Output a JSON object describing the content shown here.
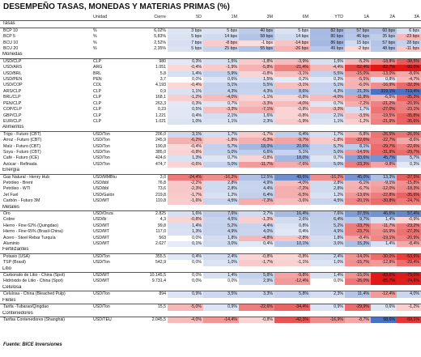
{
  "title": "DESEMPEÑO TASAS, MONEDAS Y MATERIAS PRIMAS (%)",
  "columns": [
    "",
    "Unidad",
    "Cierre",
    "5D",
    "1M",
    "3M",
    "6M",
    "YTD",
    "1A",
    "2A",
    "3A"
  ],
  "colors": {
    "pos": "#4a72c4",
    "neg": "#e01818",
    "bg": "#ffffff"
  },
  "scale_pct": 80,
  "scale_bp": 400,
  "sections": [
    {
      "name": "Tasas",
      "mode": "bp",
      "rows": [
        {
          "name": "BCP 10",
          "unit": "%",
          "close": "6,02%",
          "vals": [
            "3 bps",
            "5 bps",
            "40 bps",
            "5 bps",
            "82 bps",
            "57 bps",
            "60 bps",
            "6 bps"
          ]
        },
        {
          "name": "BCP 5",
          "unit": "%",
          "close": "5,83%",
          "vals": [
            "5 bps",
            "14 bps",
            "58 bps",
            "14 bps",
            "80 bps",
            "46 bps",
            "35 bps",
            "-23 bps"
          ]
        },
        {
          "name": "BCU 10",
          "unit": "%",
          "close": "2,52%",
          "vals": [
            "7 bps",
            "-8 bps",
            "-1 bps",
            "-14 bps",
            "86 bps",
            "15 bps",
            "57 bps",
            "28 bps"
          ]
        },
        {
          "name": "BCU 20",
          "unit": "%",
          "close": "2,35%",
          "vals": [
            "5 bps",
            "25 bps",
            "55 bps",
            "-26 bps",
            "49 bps",
            "-2 bps",
            "48 bps",
            "-11 bps"
          ]
        }
      ]
    },
    {
      "name": "Monedas",
      "mode": "pct",
      "rows": [
        {
          "name": "USD/CLP",
          "unit": "CLP",
          "close": "980",
          "vals": [
            "0,3%",
            "1,5%",
            "-1,8%",
            "-3,9%",
            "1,5%",
            "-5,2%",
            "-18,8%",
            "-38,5%"
          ]
        },
        {
          "name": "USD/ARS",
          "unit": "ARG",
          "close": "1.051",
          "vals": [
            "-0,4%",
            "-1,9%",
            "-5,8%",
            "-21,4%",
            "-4,4%",
            "-52,4%",
            "-82,7%",
            "-90,0%"
          ]
        },
        {
          "name": "USD/BRL",
          "unit": "BRL",
          "close": "5,8",
          "vals": [
            "1,4%",
            "5,9%",
            "-0,8%",
            "-3,1%",
            "5,5%",
            "-15,0%",
            "-13,0%",
            "-8,6%"
          ]
        },
        {
          "name": "USD/PEN",
          "unit": "PEN",
          "close": "3,7",
          "vals": [
            "0,0%",
            "0,6%",
            "1,5%",
            "0,2%",
            "0,3%",
            "-5,5%",
            "0,8%",
            "-4,7%"
          ]
        },
        {
          "name": "USD/COP",
          "unit": "COL",
          "close": "4.193",
          "vals": [
            "-0,4%",
            "5,1%",
            "5,5%",
            "-3,1%",
            "5,1%",
            "-6,0%",
            "-16,9%",
            "-32,3%"
          ]
        },
        {
          "name": "ARS/CLP",
          "unit": "CLP",
          "close": "0,9",
          "vals": [
            "1,1%",
            "4,3%",
            "4,3%",
            "8,6%",
            "4,3%",
            "21,3%",
            "319,1%",
            "719,4%"
          ]
        },
        {
          "name": "BRL/CLP",
          "unit": "CLP",
          "close": "168,1",
          "vals": [
            "-1,2%",
            "-4,0%",
            "-1,1%",
            "-0,8%",
            "-4,0%",
            "-11,8%",
            "-6,5%",
            "-35,3%"
          ]
        },
        {
          "name": "PEN/CLP",
          "unit": "CLP",
          "close": "263,3",
          "vals": [
            "0,3%",
            "0,7%",
            "-3,3%",
            "-4,0%",
            "0,7%",
            "-7,2%",
            "-21,2%",
            "-20,9%"
          ]
        },
        {
          "name": "COP/CLP",
          "unit": "CLP",
          "close": "0,23",
          "vals": [
            "0,5%",
            "-3,3%",
            "-7,1%",
            "-0,8%",
            "-3,3%",
            "1,7%",
            "-27,0%",
            "-23,1%"
          ]
        },
        {
          "name": "GBP/CLP",
          "unit": "CLP",
          "close": "1.221",
          "vals": [
            "0,4%",
            "2,1%",
            "1,6%",
            "-0,8%",
            "2,1%",
            "-3,5%",
            "-19,5%",
            "-35,8%"
          ]
        },
        {
          "name": "EUR/CLP",
          "unit": "CLP",
          "close": "1.021",
          "vals": [
            "1,0%",
            "1,1%",
            "2,3%",
            "-1,9%",
            "1,1%",
            "-1,2%",
            "-21,9%",
            "-35,6%"
          ]
        }
      ]
    },
    {
      "name": "Alimentos",
      "mode": "pct",
      "rows": [
        {
          "name": "Trigo - Futuro (CBT)",
          "unit": "USD/Ton",
          "close": "206,0",
          "vals": [
            "3,1%",
            "1,7%",
            "-1,7%",
            "6,4%",
            "1,7%",
            "-5,8%",
            "-26,5%",
            "-26,5%"
          ]
        },
        {
          "name": "Arroz - Futuro (CBT)",
          "unit": "USD/Ton",
          "close": "245,9",
          "vals": [
            "-6,2%",
            "-1,8%",
            "-6,3%",
            "-9,7%",
            "-1,8%",
            "-22,6%",
            "-22,7%",
            "-8,6%"
          ]
        },
        {
          "name": "Maíz - Futuro (CBT)",
          "unit": "USD/Ton",
          "close": "190,8",
          "vals": [
            "-0,4%",
            "5,7%",
            "18,0%",
            "20,6%",
            "5,7%",
            "8,1%",
            "-29,7%",
            "-22,6%"
          ]
        },
        {
          "name": "Soya - Futuro (CBT)",
          "unit": "USD/Ton",
          "close": "385,0",
          "vals": [
            "-0,8%",
            "5,0%",
            "6,6%",
            "5,1%",
            "5,0%",
            "-14,5%",
            "-31,9%",
            "-29,7%"
          ]
        },
        {
          "name": "Café - Futuro (ICE)",
          "unit": "USD/Ton",
          "close": "424,6",
          "vals": [
            "1,3%",
            "0,7%",
            "-0,8%",
            "18,0%",
            "0,7%",
            "33,6%",
            "45,7%",
            "5,7%"
          ]
        },
        {
          "name": "Azúcar - Refinada",
          "unit": "USD/Ton",
          "close": "474,7",
          "vals": [
            "-0,6%",
            "5,0%",
            "-11,7%",
            "-7,6%",
            "5,0%",
            "-23,3%",
            "-9,8%",
            "0,3%"
          ]
        }
      ]
    },
    {
      "name": "Energía",
      "mode": "pct",
      "rows": [
        {
          "name": "Gas Natural - Henry Hub",
          "unit": "USD/MMBtu",
          "close": "3,0",
          "vals": [
            "-24,4%",
            "-16,2%",
            "12,5%",
            "49,6%",
            "-16,2%",
            "45,0%",
            "13,3%",
            "-37,5%"
          ]
        },
        {
          "name": "Petróleo - Brent",
          "unit": "USD/bbl",
          "close": "76,8",
          "vals": [
            "-2,2%",
            "2,8%",
            "4,9%",
            "-4,0%",
            "2,8%",
            "-6,1%",
            "-9,1%",
            "-15,8%"
          ]
        },
        {
          "name": "Petróleo - WTI",
          "unit": "USD/bbl",
          "close": "73,6",
          "vals": [
            "-2,3%",
            "2,8%",
            "4,4%",
            "-7,2%",
            "2,8%",
            "-6,7%",
            "-12,0%",
            "-18,3%"
          ]
        },
        {
          "name": "Jet Fuel",
          "unit": "USD/Galón",
          "close": "219,8",
          "vals": [
            "-1,7%",
            "1,2%",
            "6,4%",
            "-6,5%",
            "1,2%",
            "-13,6%",
            "-22,8%",
            "-35,6%"
          ]
        },
        {
          "name": "Carbón - Futuro 3M",
          "unit": "USD/MT",
          "close": "110,8",
          "vals": [
            "-1,6%",
            "4,5%",
            "-7,3%",
            "-3,6%",
            "4,5%",
            "-20,1%",
            "-30,8%",
            "-24,7%"
          ]
        }
      ]
    },
    {
      "name": "Metales",
      "mode": "pct",
      "rows": [
        {
          "name": "Oro",
          "unit": "USD/Onza",
          "close": "2.825",
          "vals": [
            "1,6%",
            "7,6%",
            "2,7%",
            "16,4%",
            "7,6%",
            "37,5%",
            "46,6%",
            "57,4%"
          ]
        },
        {
          "name": "Cobre",
          "unit": "USD/lb",
          "close": "4,3",
          "vals": [
            "-0,8%",
            "4,5%",
            "-1,3%",
            "2,6%",
            "6,4%",
            "9,7%",
            "1,4%",
            "-0,9%"
          ]
        },
        {
          "name": "Hierro - Fine 62% (Quingdao)",
          "unit": "USD/MT",
          "close": "99,8",
          "vals": [
            "1,4%",
            "5,2%",
            "4,4%",
            "0,8%",
            "5,2%",
            "-23,7%",
            "-11,7%",
            "-23,2%"
          ]
        },
        {
          "name": "Hierro - Fine 65% (Brasil-China)",
          "unit": "USD/MT",
          "close": "117,0",
          "vals": [
            "1,3%",
            "4,9%",
            "4,0%",
            "0,4%",
            "4,9%",
            "-23,7%",
            "-16,9%",
            "-27,3%"
          ]
        },
        {
          "name": "Acero - Steel Rebar Turquía",
          "unit": "USD/MT",
          "close": "563",
          "vals": [
            "0,0%",
            "1,8%",
            "-4,8%",
            "-2,8%",
            "1,8%",
            "-8,4%",
            "-19,1%",
            "-20,9%"
          ]
        },
        {
          "name": "Aluminio",
          "unit": "USD/MT",
          "close": "2.627",
          "vals": [
            "0,1%",
            "3,0%",
            "0,4%",
            "10,1%",
            "3,0%",
            "15,3%",
            "1,4%",
            "-8,4%"
          ]
        }
      ]
    },
    {
      "name": "Fertilizantes",
      "mode": "pct",
      "rows": [
        {
          "name": "Potasio (USA)",
          "unit": "USD/Ton",
          "close": "355,5",
          "vals": [
            "0,4%",
            "2,4%",
            "-0,8%",
            "-0,8%",
            "2,4%",
            "-14,0%",
            "-30,0%",
            "-53,9%"
          ]
        },
        {
          "name": "TSP (Brasil)",
          "unit": "USD/Ton",
          "close": "542,9",
          "vals": [
            "0,0%",
            "1,0%",
            "-1,7%",
            "-1,1%",
            "1,0%",
            "-15,7%",
            "-12,8%",
            "-29,4%"
          ]
        }
      ]
    },
    {
      "name": "Litio",
      "mode": "pct",
      "rows": [
        {
          "name": "Carbonato de Litio - China (Spot)",
          "unit": "USD/MT",
          "close": "10.145,5",
          "vals": [
            "0,0%",
            "1,4%",
            "5,8%",
            "-9,8%",
            "1,4%",
            "-15,0%",
            "-83,6%",
            "-79,0%"
          ]
        },
        {
          "name": "Hidróxido de Litio - China (Spot)",
          "unit": "USD/MT",
          "close": "9.731,4",
          "vals": [
            "0,0%",
            "0,0%",
            "2,9%",
            "-12,4%",
            "0,0%",
            "-26,0%",
            "-85,7%",
            "-74,6%"
          ]
        }
      ]
    },
    {
      "name": "Celulosa",
      "mode": "pct",
      "rows": [
        {
          "name": "Celulosa - China (Bleached Pulp)",
          "unit": "USD/Ton",
          "close": "894",
          "vals": [
            "0,9%",
            "3,5%",
            "3,3%",
            "5,8%",
            "2,3%",
            "11,4%",
            "-12,4%",
            "4,0%"
          ]
        }
      ]
    },
    {
      "name": "Fletes",
      "mode": "pct",
      "rows": [
        {
          "name": "Tarifa -Tubarao/Qingdao",
          "unit": "USD/Ton",
          "close": "15,5",
          "vals": [
            "-5,0%",
            "0,9%",
            "-22,6%",
            "-34,4%",
            "0,9%",
            "-29,9%",
            "0,6%",
            "-1,2%"
          ]
        }
      ]
    },
    {
      "name": "Contenedores",
      "mode": "pct",
      "rows": [
        {
          "name": "Tarifas Contenedores (Shanghái)",
          "unit": "USD/TEU",
          "close": "2.045,5",
          "vals": [
            "-4,0%",
            "-14,4%",
            "-0,8%",
            "-42,3%",
            "-16,9%",
            "-8,7%",
            "98,6%",
            "-59,1%"
          ]
        }
      ]
    }
  ],
  "footer": "Fuente: BICE Inversiones"
}
